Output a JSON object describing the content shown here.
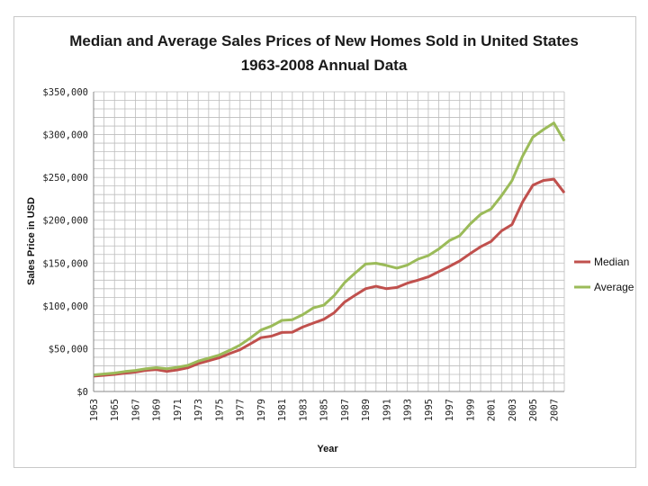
{
  "chart_data": {
    "type": "line",
    "title": "Median and Average Sales Prices of New Homes Sold in United States",
    "subtitle": "1963-2008 Annual Data",
    "xlabel": "Year",
    "ylabel": "Sales Price in USD",
    "ylim": [
      0,
      350000
    ],
    "yticks": [
      "$0",
      "$50,000",
      "$100,000",
      "$150,000",
      "$200,000",
      "$250,000",
      "$300,000",
      "$350,000"
    ],
    "xticks": [
      "1963",
      "1965",
      "1967",
      "1969",
      "1971",
      "1973",
      "1975",
      "1977",
      "1979",
      "1981",
      "1983",
      "1985",
      "1987",
      "1989",
      "1991",
      "1993",
      "1995",
      "1997",
      "1999",
      "2001",
      "2003",
      "2005",
      "2007"
    ],
    "grid": true,
    "legend": "right",
    "x": [
      1963,
      1964,
      1965,
      1966,
      1967,
      1968,
      1969,
      1970,
      1971,
      1972,
      1973,
      1974,
      1975,
      1976,
      1977,
      1978,
      1979,
      1980,
      1981,
      1982,
      1983,
      1984,
      1985,
      1986,
      1987,
      1988,
      1989,
      1990,
      1991,
      1992,
      1993,
      1994,
      1995,
      1996,
      1997,
      1998,
      1999,
      2000,
      2001,
      2002,
      2003,
      2004,
      2005,
      2006,
      2007,
      2008
    ],
    "series": [
      {
        "name": "Median",
        "color": "#c0504d",
        "values": [
          18000,
          18900,
          20000,
          21400,
          22700,
          24700,
          25600,
          23400,
          25200,
          27600,
          32500,
          35900,
          39300,
          44200,
          48800,
          55700,
          62900,
          64600,
          68900,
          69300,
          75300,
          79900,
          84300,
          92000,
          104500,
          112500,
          120000,
          122900,
          120000,
          121500,
          126500,
          130000,
          133900,
          140000,
          146000,
          152500,
          161000,
          169000,
          175200,
          187600,
          195000,
          221000,
          240900,
          246500,
          247900,
          232100
        ]
      },
      {
        "name": "Average",
        "color": "#9bbb59",
        "values": [
          19300,
          20500,
          21500,
          23300,
          24600,
          26600,
          27900,
          26600,
          28300,
          30500,
          35500,
          38900,
          42600,
          48000,
          54200,
          62500,
          71800,
          76400,
          83000,
          83900,
          89800,
          97600,
          100800,
          111900,
          127200,
          138300,
          148800,
          149800,
          147200,
          144100,
          147700,
          154500,
          158700,
          166400,
          176200,
          181900,
          195600,
          207000,
          213200,
          228700,
          246300,
          274500,
          297000,
          305900,
          313600,
          292600
        ]
      }
    ]
  }
}
